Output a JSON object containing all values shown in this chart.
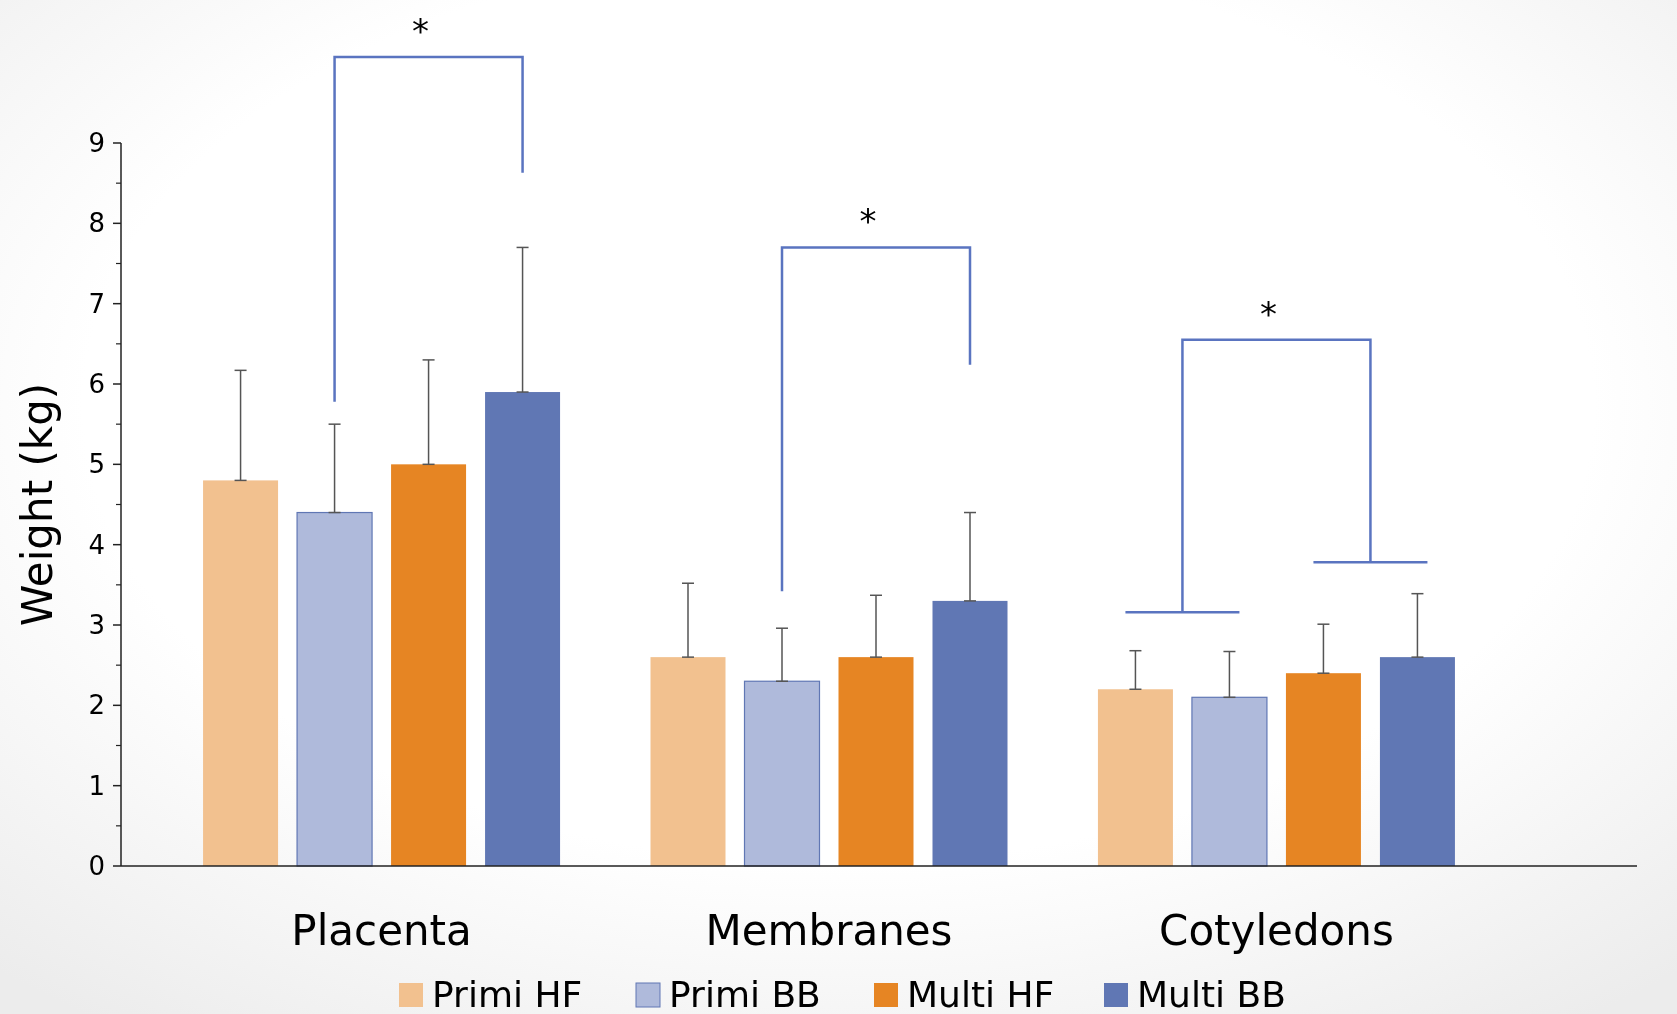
{
  "chart_data": {
    "type": "bar",
    "ylabel": "Weight (kg)",
    "categories": [
      "Placenta",
      "Membranes",
      "Cotyledons"
    ],
    "series": [
      {
        "name": "Primi HF",
        "color": "#f2c18f",
        "values": [
          4.8,
          2.6,
          2.2
        ],
        "errors": [
          [
            4.8,
            6.17
          ],
          [
            2.6,
            3.52
          ],
          [
            2.2,
            2.68
          ]
        ]
      },
      {
        "name": "Primi BB",
        "color": "#afbadb",
        "values": [
          4.4,
          2.3,
          2.1
        ],
        "errors": [
          [
            4.4,
            5.5
          ],
          [
            2.3,
            2.96
          ],
          [
            2.1,
            2.67
          ]
        ]
      },
      {
        "name": "Multi HF",
        "color": "#e68523",
        "values": [
          5.0,
          2.6,
          2.4
        ],
        "errors": [
          [
            5.0,
            6.3
          ],
          [
            2.6,
            3.37
          ],
          [
            2.4,
            3.01
          ]
        ]
      },
      {
        "name": "Multi BB",
        "color": "#6077b4",
        "values": [
          5.9,
          3.3,
          2.6
        ],
        "errors": [
          [
            5.9,
            7.7
          ],
          [
            3.3,
            4.4
          ],
          [
            2.6,
            3.39
          ]
        ]
      }
    ],
    "ylim": [
      0,
      9
    ],
    "yticks": [
      0,
      1,
      2,
      3,
      4,
      5,
      6,
      7,
      8,
      9
    ],
    "grid": false,
    "legend": "bottom",
    "annotations": [
      "*",
      "*",
      "*"
    ]
  }
}
